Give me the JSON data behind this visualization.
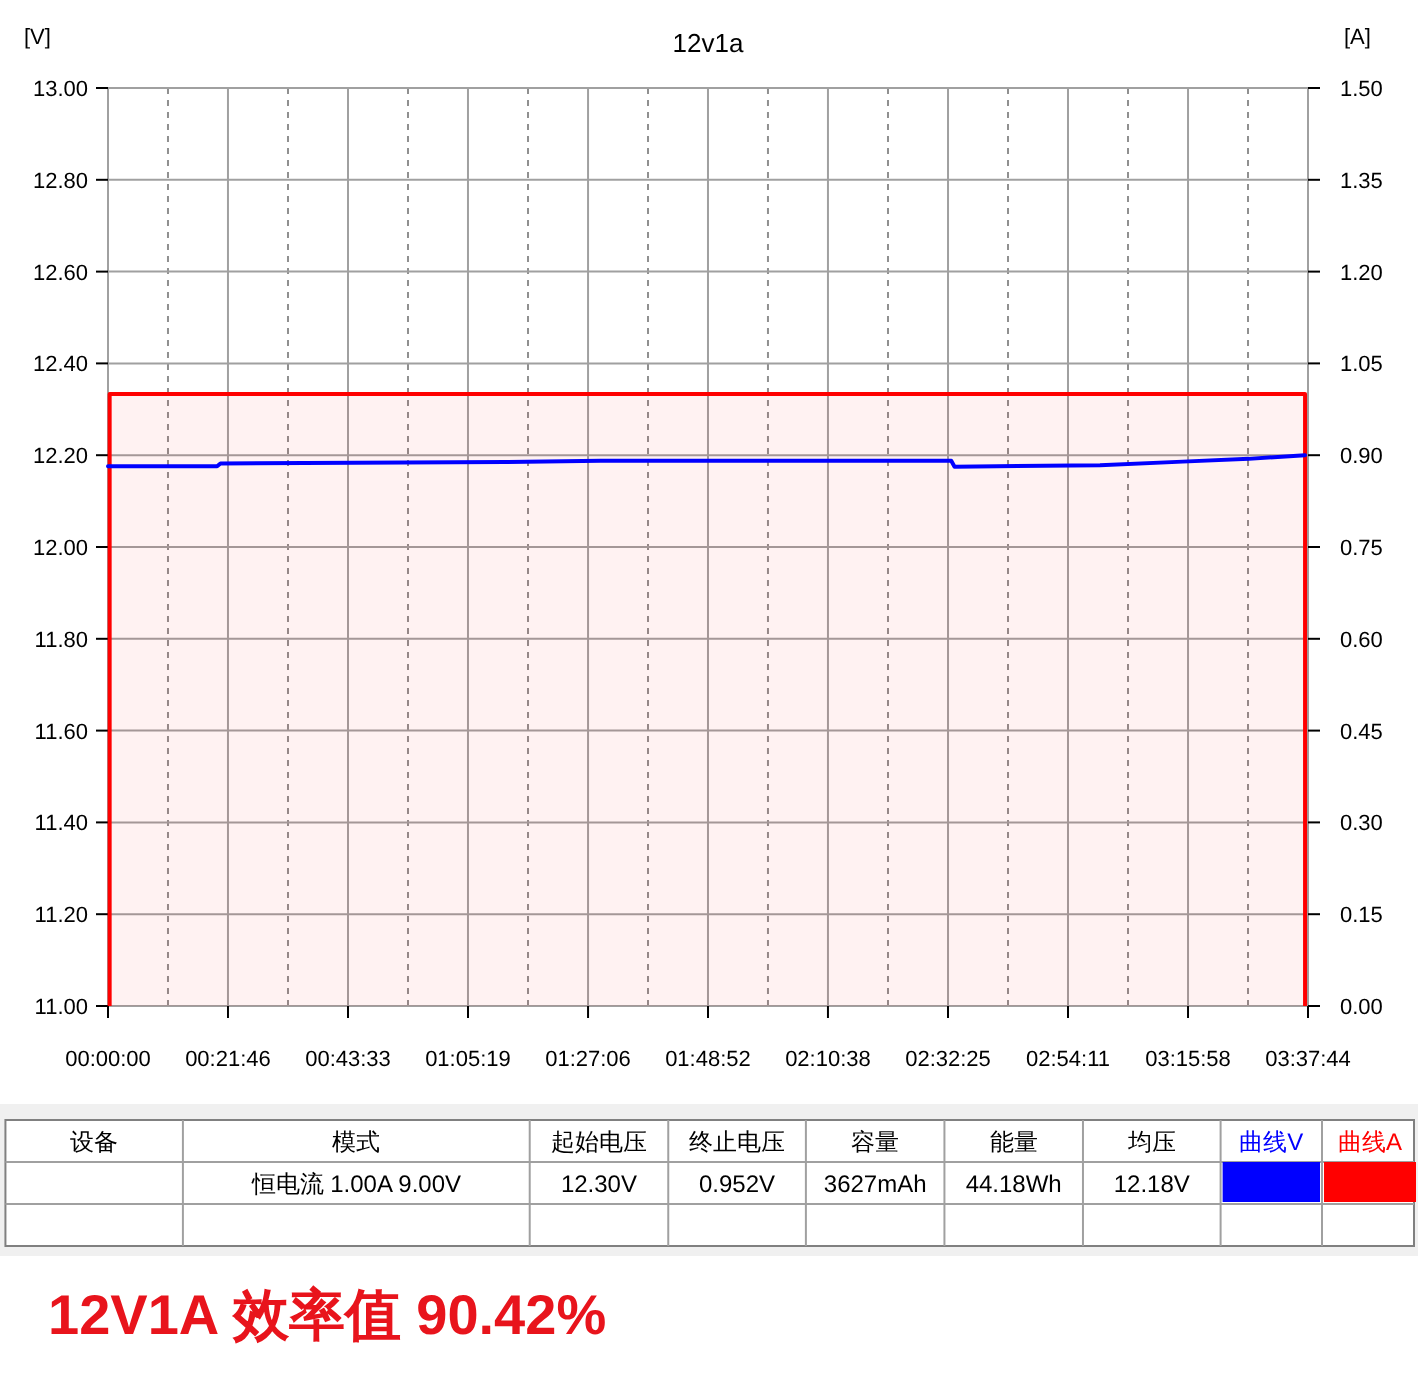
{
  "chart_data": {
    "type": "line",
    "title": "12v1a",
    "ylabel": "[V]",
    "y2label": "[A]",
    "x": [
      0,
      0.02,
      0.33,
      0.34,
      1.2,
      1.49,
      2.55,
      2.56,
      3.0,
      3.25,
      3.45,
      3.62
    ],
    "xlim": [
      0,
      3.6289
    ],
    "xticks": [
      {
        "value": 0,
        "label": "00:00:00"
      },
      {
        "value": 0.3628,
        "label": "00:21:46"
      },
      {
        "value": 0.7258,
        "label": "00:43:33"
      },
      {
        "value": 1.0886,
        "label": "01:05:19"
      },
      {
        "value": 1.4517,
        "label": "01:27:06"
      },
      {
        "value": 1.8144,
        "label": "01:48:52"
      },
      {
        "value": 2.1772,
        "label": "02:10:38"
      },
      {
        "value": 2.5403,
        "label": "02:32:25"
      },
      {
        "value": 2.9031,
        "label": "02:54:11"
      },
      {
        "value": 3.2661,
        "label": "03:15:58"
      },
      {
        "value": 3.6289,
        "label": "03:37:44"
      }
    ],
    "ylim": [
      11,
      13
    ],
    "yticks": [
      {
        "value": 11,
        "label": "11.00"
      },
      {
        "value": 11.2,
        "label": "11.20"
      },
      {
        "value": 11.4,
        "label": "11.40"
      },
      {
        "value": 11.6,
        "label": "11.60"
      },
      {
        "value": 11.8,
        "label": "11.80"
      },
      {
        "value": 12,
        "label": "12.00"
      },
      {
        "value": 12.2,
        "label": "12.20"
      },
      {
        "value": 12.4,
        "label": "12.40"
      },
      {
        "value": 12.6,
        "label": "12.60"
      },
      {
        "value": 12.8,
        "label": "12.80"
      },
      {
        "value": 13,
        "label": "13.00"
      }
    ],
    "y2lim": [
      0,
      1.5
    ],
    "y2ticks": [
      {
        "value": 0,
        "label": "0.00"
      },
      {
        "value": 0.15,
        "label": "0.15"
      },
      {
        "value": 0.3,
        "label": "0.30"
      },
      {
        "value": 0.45,
        "label": "0.45"
      },
      {
        "value": 0.6,
        "label": "0.60"
      },
      {
        "value": 0.75,
        "label": "0.75"
      },
      {
        "value": 0.9,
        "label": "0.90"
      },
      {
        "value": 1.05,
        "label": "1.05"
      },
      {
        "value": 1.2,
        "label": "1.20"
      },
      {
        "value": 1.35,
        "label": "1.35"
      },
      {
        "value": 1.5,
        "label": "1.50"
      }
    ],
    "series": [
      {
        "name": "曲线V",
        "color": "#0000ff",
        "values": [
          12.176,
          12.176,
          12.176,
          12.182,
          12.185,
          12.188,
          12.188,
          12.175,
          12.178,
          12.186,
          12.192,
          12.2
        ]
      },
      {
        "name": "曲线A",
        "color": "#ff0000",
        "axis": "y2",
        "type": "area",
        "x": [
          0.005,
          3.62
        ],
        "values": [
          1.0,
          1.0
        ]
      }
    ],
    "grid": true,
    "legend": "bottom",
    "marker": "none",
    "line_style": "solid",
    "annotations": [
      "设备",
      "模式",
      "起始电压",
      "终止电压",
      "容量",
      "能量",
      "均压",
      "恒电流  1.00A  9.00V",
      "12.30V",
      "0.952V",
      "3627mAh",
      "44.18Wh",
      "12.18V",
      "12V1A  效率值 90.42%"
    ]
  }
}
